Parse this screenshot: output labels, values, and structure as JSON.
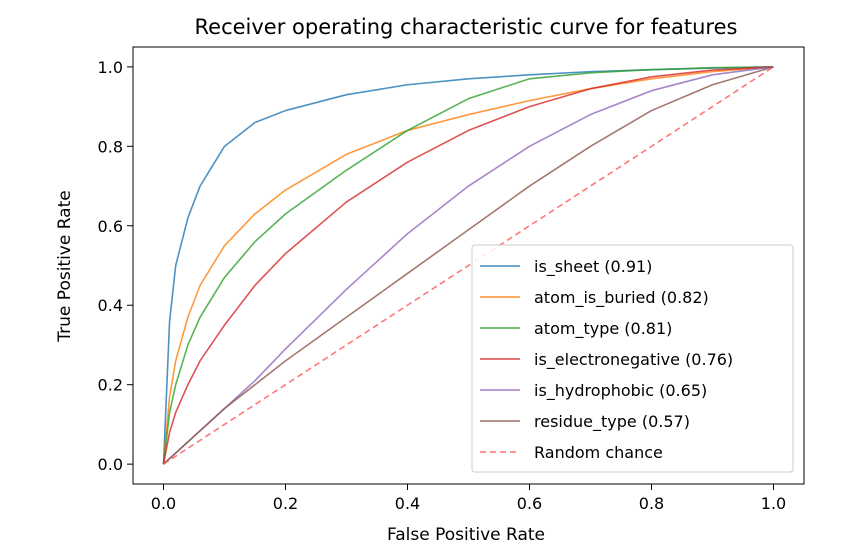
{
  "chart_data": {
    "type": "line",
    "title": "Receiver operating characteristic curve for features",
    "xlabel": "False Positive Rate",
    "ylabel": "True Positive Rate",
    "xlim": [
      -0.05,
      1.05
    ],
    "ylim": [
      -0.05,
      1.05
    ],
    "xticks": [
      "0.0",
      "0.2",
      "0.4",
      "0.6",
      "0.8",
      "1.0"
    ],
    "yticks": [
      "0.0",
      "0.2",
      "0.4",
      "0.6",
      "0.8",
      "1.0"
    ],
    "legend_position": "lower-right",
    "series": [
      {
        "name": "is_sheet (0.91)",
        "color": "#1f77b4",
        "dashed": false,
        "x": [
          0,
          0.01,
          0.02,
          0.04,
          0.06,
          0.1,
          0.15,
          0.2,
          0.3,
          0.4,
          0.5,
          0.6,
          0.7,
          0.8,
          0.9,
          1.0
        ],
        "y": [
          0,
          0.36,
          0.5,
          0.62,
          0.7,
          0.8,
          0.86,
          0.89,
          0.93,
          0.955,
          0.97,
          0.98,
          0.988,
          0.993,
          0.997,
          1.0
        ]
      },
      {
        "name": "atom_is_buried (0.82)",
        "color": "#ff7f0e",
        "dashed": false,
        "x": [
          0,
          0.01,
          0.02,
          0.04,
          0.06,
          0.1,
          0.15,
          0.2,
          0.3,
          0.4,
          0.5,
          0.6,
          0.7,
          0.8,
          0.9,
          1.0
        ],
        "y": [
          0,
          0.17,
          0.26,
          0.37,
          0.45,
          0.55,
          0.63,
          0.69,
          0.78,
          0.84,
          0.88,
          0.915,
          0.945,
          0.97,
          0.988,
          1.0
        ]
      },
      {
        "name": "atom_type (0.81)",
        "color": "#2ca02c",
        "dashed": false,
        "x": [
          0,
          0.01,
          0.02,
          0.04,
          0.06,
          0.1,
          0.15,
          0.2,
          0.3,
          0.4,
          0.5,
          0.6,
          0.7,
          0.8,
          0.9,
          1.0
        ],
        "y": [
          0,
          0.13,
          0.2,
          0.3,
          0.37,
          0.47,
          0.56,
          0.63,
          0.74,
          0.84,
          0.92,
          0.97,
          0.985,
          0.993,
          0.998,
          1.0
        ]
      },
      {
        "name": "is_electronegative (0.76)",
        "color": "#d62728",
        "dashed": false,
        "x": [
          0,
          0.01,
          0.02,
          0.04,
          0.06,
          0.1,
          0.15,
          0.2,
          0.3,
          0.4,
          0.5,
          0.6,
          0.7,
          0.8,
          0.9,
          1.0
        ],
        "y": [
          0,
          0.08,
          0.13,
          0.2,
          0.26,
          0.35,
          0.45,
          0.53,
          0.66,
          0.76,
          0.84,
          0.9,
          0.945,
          0.975,
          0.992,
          1.0
        ]
      },
      {
        "name": "is_hydrophobic (0.65)",
        "color": "#9467bd",
        "dashed": false,
        "x": [
          0,
          0.05,
          0.1,
          0.15,
          0.2,
          0.3,
          0.4,
          0.5,
          0.6,
          0.7,
          0.8,
          0.9,
          1.0
        ],
        "y": [
          0,
          0.07,
          0.14,
          0.21,
          0.29,
          0.44,
          0.58,
          0.7,
          0.8,
          0.88,
          0.94,
          0.98,
          1.0
        ]
      },
      {
        "name": "residue_type (0.57)",
        "color": "#8c564b",
        "dashed": false,
        "x": [
          0,
          0.1,
          0.2,
          0.3,
          0.4,
          0.5,
          0.6,
          0.7,
          0.8,
          0.9,
          1.0
        ],
        "y": [
          0,
          0.14,
          0.26,
          0.37,
          0.48,
          0.59,
          0.7,
          0.8,
          0.89,
          0.955,
          1.0
        ]
      },
      {
        "name": "Random chance",
        "color": "#ff5555",
        "dashed": true,
        "x": [
          0,
          1.0
        ],
        "y": [
          0,
          1.0
        ]
      }
    ]
  }
}
